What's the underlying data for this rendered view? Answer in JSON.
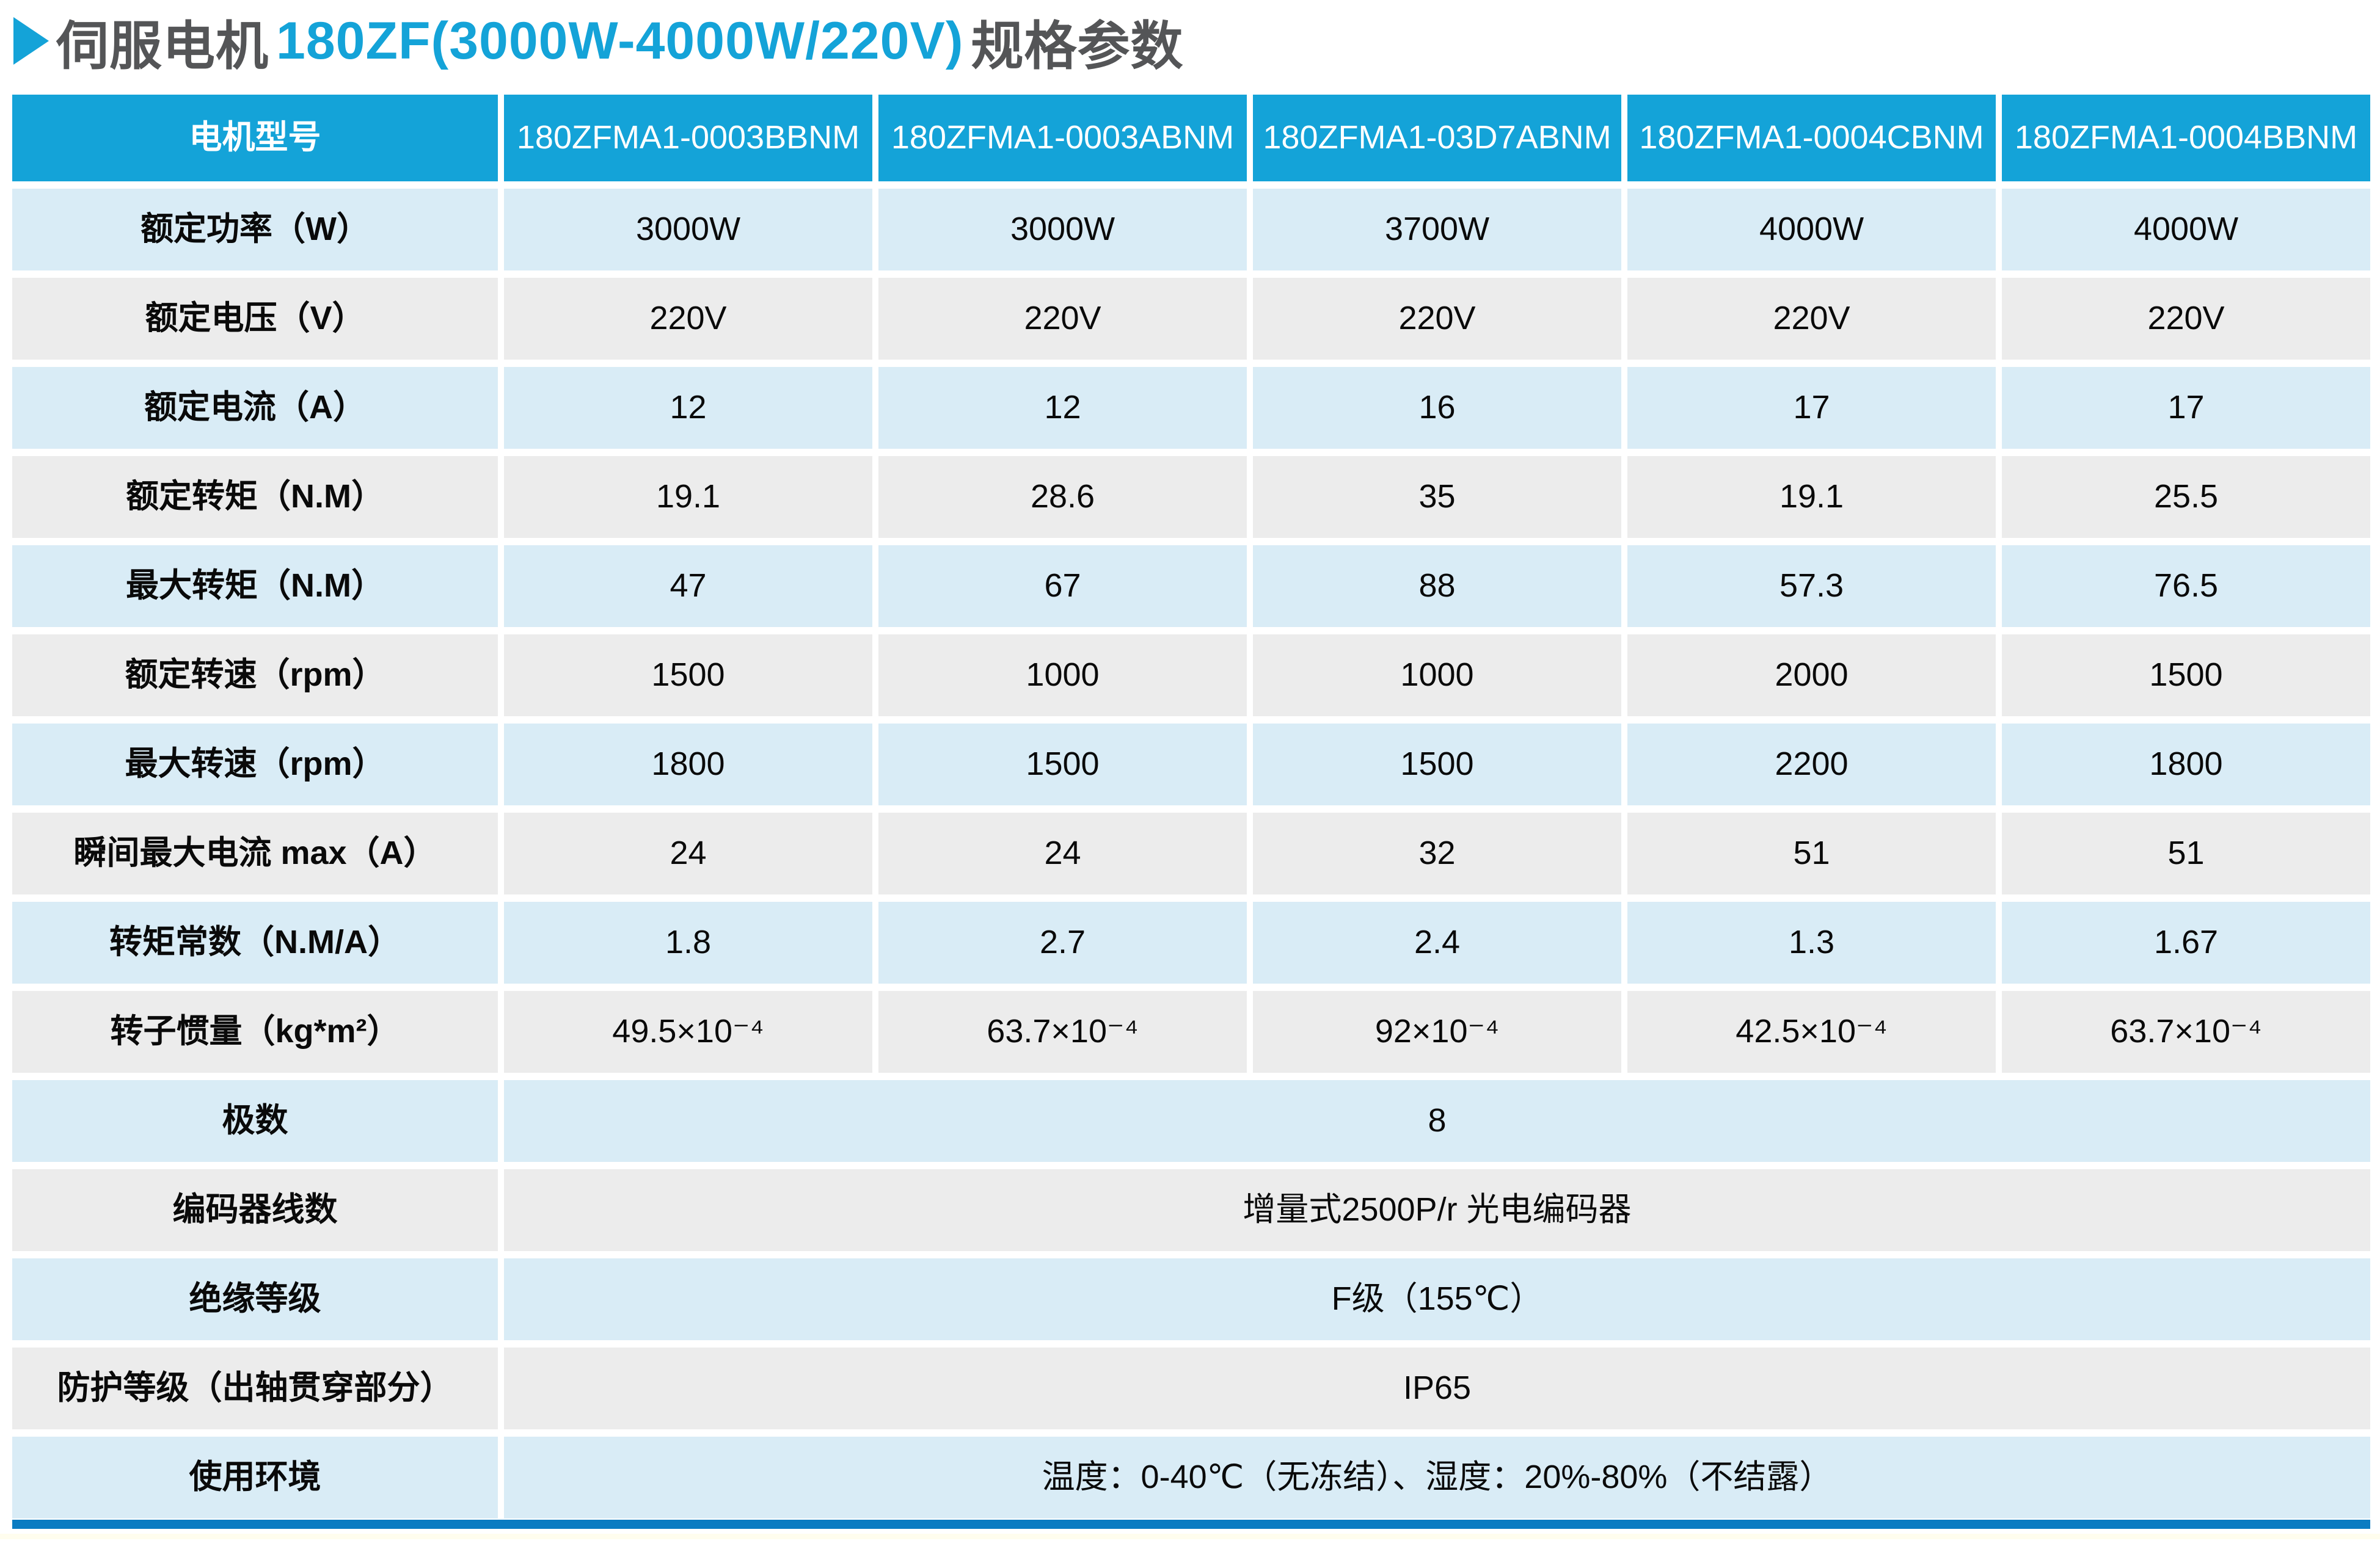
{
  "title": {
    "prefix": "伺服电机",
    "highlight": "180ZF(3000W-4000W/220V)",
    "suffix": "规格参数"
  },
  "colors": {
    "accent": "#14a3d8",
    "title_dark": "#545557",
    "row_blue": "#d9ecf6",
    "row_gray": "#ececec",
    "bottom_bar": "#0b7cc2"
  },
  "table": {
    "corner_label": "电机型号",
    "models": [
      "180ZFMA1-0003BBNM",
      "180ZFMA1-0003ABNM",
      "180ZFMA1-03D7ABNM",
      "180ZFMA1-0004CBNM",
      "180ZFMA1-0004BBNM"
    ],
    "rows": [
      {
        "label": "额定功率（W）",
        "values": [
          "3000W",
          "3000W",
          "3700W",
          "4000W",
          "4000W"
        ]
      },
      {
        "label": "额定电压（V）",
        "values": [
          "220V",
          "220V",
          "220V",
          "220V",
          "220V"
        ]
      },
      {
        "label": "额定电流（A）",
        "values": [
          "12",
          "12",
          "16",
          "17",
          "17"
        ]
      },
      {
        "label": "额定转矩（N.M）",
        "values": [
          "19.1",
          "28.6",
          "35",
          "19.1",
          "25.5"
        ]
      },
      {
        "label": "最大转矩（N.M）",
        "values": [
          "47",
          "67",
          "88",
          "57.3",
          "76.5"
        ]
      },
      {
        "label": "额定转速（rpm）",
        "values": [
          "1500",
          "1000",
          "1000",
          "2000",
          "1500"
        ]
      },
      {
        "label": "最大转速（rpm）",
        "values": [
          "1800",
          "1500",
          "1500",
          "2200",
          "1800"
        ]
      },
      {
        "label": "瞬间最大电流 max（A）",
        "values": [
          "24",
          "24",
          "32",
          "51",
          "51"
        ]
      },
      {
        "label": "转矩常数（N.M/A）",
        "values": [
          "1.8",
          "2.7",
          "2.4",
          "1.3",
          "1.67"
        ]
      },
      {
        "label": "转子惯量（kg*m²）",
        "values": [
          "49.5×10⁻⁴",
          "63.7×10⁻⁴",
          "92×10⁻⁴",
          "42.5×10⁻⁴",
          "63.7×10⁻⁴"
        ]
      }
    ],
    "span_rows": [
      {
        "label": "极数",
        "value": "8"
      },
      {
        "label": "编码器线数",
        "value": "增量式2500P/r 光电编码器"
      },
      {
        "label": "绝缘等级",
        "value": "F级（155℃）"
      },
      {
        "label": "防护等级（出轴贯穿部分）",
        "value": "IP65"
      },
      {
        "label": "使用环境",
        "value": "温度：0-40℃（无冻结）、湿度：20%-80%（不结露）"
      }
    ]
  }
}
